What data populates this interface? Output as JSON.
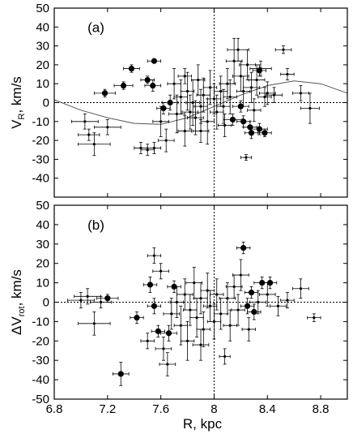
{
  "chart_data": [
    {
      "type": "scatter",
      "panel_label": "(a)",
      "ylabel_main": "V",
      "ylabel_sub": "R",
      "ylabel_unit": ", km/s",
      "xlim": [
        6.8,
        9.0
      ],
      "ylim": [
        -50,
        50
      ],
      "y_ticks": [
        50,
        40,
        30,
        20,
        10,
        0,
        -10,
        -20,
        -30,
        -40
      ],
      "reference_lines": {
        "x": 8.0,
        "y": 0
      },
      "model_curve": [
        [
          6.8,
          1.5
        ],
        [
          7.0,
          -4
        ],
        [
          7.2,
          -8
        ],
        [
          7.4,
          -11
        ],
        [
          7.6,
          -11.5
        ],
        [
          7.8,
          -8
        ],
        [
          8.0,
          -2
        ],
        [
          8.2,
          4
        ],
        [
          8.4,
          9
        ],
        [
          8.6,
          11.5
        ],
        [
          8.8,
          10
        ],
        [
          9.0,
          5
        ]
      ],
      "large_points": [
        {
          "x": 7.18,
          "y": 5,
          "ex": 0.08,
          "ey": 2
        },
        {
          "x": 7.32,
          "y": 9,
          "ex": 0.07,
          "ey": 2
        },
        {
          "x": 7.38,
          "y": 18,
          "ex": 0.06,
          "ey": 2
        },
        {
          "x": 7.5,
          "y": 12,
          "ex": 0.05,
          "ey": 2
        },
        {
          "x": 7.55,
          "y": 22,
          "ex": 0.05,
          "ey": 1
        },
        {
          "x": 7.54,
          "y": 9,
          "ex": 0.06,
          "ey": 3
        },
        {
          "x": 7.62,
          "y": -3,
          "ex": 0.05,
          "ey": 3
        },
        {
          "x": 7.67,
          "y": 0,
          "ex": 0.06,
          "ey": 4
        },
        {
          "x": 8.14,
          "y": -9,
          "ex": 0.07,
          "ey": 3
        },
        {
          "x": 8.2,
          "y": -2,
          "ex": 0.06,
          "ey": 3
        },
        {
          "x": 8.22,
          "y": -10,
          "ex": 0.05,
          "ey": 3
        },
        {
          "x": 8.27,
          "y": -13,
          "ex": 0.05,
          "ey": 3
        },
        {
          "x": 8.28,
          "y": -16,
          "ex": 0.05,
          "ey": 3
        },
        {
          "x": 8.34,
          "y": 17,
          "ex": 0.05,
          "ey": 3
        },
        {
          "x": 8.34,
          "y": -14,
          "ex": 0.06,
          "ey": 3
        },
        {
          "x": 8.38,
          "y": -16,
          "ex": 0.05,
          "ey": 2
        }
      ],
      "small_points": [
        {
          "x": 7.03,
          "y": -10,
          "ex": 0.1,
          "ey": 4
        },
        {
          "x": 7.06,
          "y": -17,
          "ex": 0.08,
          "ey": 3
        },
        {
          "x": 7.1,
          "y": -22,
          "ex": 0.12,
          "ey": 6
        },
        {
          "x": 7.2,
          "y": -13,
          "ex": 0.1,
          "ey": 4
        },
        {
          "x": 7.45,
          "y": -24,
          "ex": 0.05,
          "ey": 3
        },
        {
          "x": 7.5,
          "y": -25,
          "ex": 0.05,
          "ey": 3
        },
        {
          "x": 7.55,
          "y": -24,
          "ex": 0.05,
          "ey": 3
        },
        {
          "x": 7.6,
          "y": -10,
          "ex": 0.06,
          "ey": 8
        },
        {
          "x": 7.64,
          "y": -20,
          "ex": 0.06,
          "ey": 6
        },
        {
          "x": 7.7,
          "y": 10,
          "ex": 0.05,
          "ey": 8
        },
        {
          "x": 7.72,
          "y": -6,
          "ex": 0.06,
          "ey": 10
        },
        {
          "x": 7.75,
          "y": 3,
          "ex": 0.05,
          "ey": 9
        },
        {
          "x": 7.78,
          "y": -15,
          "ex": 0.05,
          "ey": 8
        },
        {
          "x": 7.8,
          "y": 6,
          "ex": 0.05,
          "ey": 10
        },
        {
          "x": 7.82,
          "y": -5,
          "ex": 0.06,
          "ey": 9
        },
        {
          "x": 7.84,
          "y": 0,
          "ex": 0.05,
          "ey": 12
        },
        {
          "x": 7.86,
          "y": -8,
          "ex": 0.06,
          "ey": 9
        },
        {
          "x": 7.88,
          "y": 12,
          "ex": 0.05,
          "ey": 8
        },
        {
          "x": 7.9,
          "y": -2,
          "ex": 0.05,
          "ey": 9
        },
        {
          "x": 7.92,
          "y": 4,
          "ex": 0.05,
          "ey": 9
        },
        {
          "x": 7.95,
          "y": -10,
          "ex": 0.05,
          "ey": 12
        },
        {
          "x": 7.97,
          "y": 8,
          "ex": 0.05,
          "ey": 9
        },
        {
          "x": 8.0,
          "y": 2,
          "ex": 0.05,
          "ey": 8
        },
        {
          "x": 8.02,
          "y": -5,
          "ex": 0.05,
          "ey": 9
        },
        {
          "x": 8.05,
          "y": 6,
          "ex": 0.05,
          "ey": 8
        },
        {
          "x": 8.07,
          "y": -2,
          "ex": 0.05,
          "ey": 9
        },
        {
          "x": 8.1,
          "y": 10,
          "ex": 0.06,
          "ey": 8
        },
        {
          "x": 8.12,
          "y": 3,
          "ex": 0.05,
          "ey": 9
        },
        {
          "x": 8.15,
          "y": 22,
          "ex": 0.06,
          "ey": 12
        },
        {
          "x": 8.18,
          "y": 28,
          "ex": 0.08,
          "ey": 6
        },
        {
          "x": 8.2,
          "y": 14,
          "ex": 0.06,
          "ey": 8
        },
        {
          "x": 8.22,
          "y": 6,
          "ex": 0.05,
          "ey": 8
        },
        {
          "x": 8.25,
          "y": 20,
          "ex": 0.06,
          "ey": 8
        },
        {
          "x": 8.28,
          "y": 8,
          "ex": 0.06,
          "ey": 8
        },
        {
          "x": 8.3,
          "y": -4,
          "ex": 0.05,
          "ey": 6
        },
        {
          "x": 8.32,
          "y": 12,
          "ex": 0.06,
          "ey": 8
        },
        {
          "x": 8.35,
          "y": 18,
          "ex": 0.08,
          "ey": 4
        },
        {
          "x": 8.4,
          "y": 5,
          "ex": 0.06,
          "ey": 6
        },
        {
          "x": 8.45,
          "y": 4,
          "ex": 0.06,
          "ey": 4
        },
        {
          "x": 8.52,
          "y": 28,
          "ex": 0.06,
          "ey": 2
        },
        {
          "x": 8.55,
          "y": 15,
          "ex": 0.05,
          "ey": 3
        },
        {
          "x": 8.65,
          "y": 5,
          "ex": 0.06,
          "ey": 4
        },
        {
          "x": 8.72,
          "y": -3,
          "ex": 0.07,
          "ey": 8
        },
        {
          "x": 8.24,
          "y": -29,
          "ex": 0.04,
          "ey": 1.5
        },
        {
          "x": 7.9,
          "y": -15,
          "ex": 0.06,
          "ey": 6
        },
        {
          "x": 7.78,
          "y": 14,
          "ex": 0.05,
          "ey": 4
        },
        {
          "x": 8.38,
          "y": 3,
          "ex": 0.05,
          "ey": 5
        },
        {
          "x": 8.08,
          "y": -12,
          "ex": 0.05,
          "ey": 6
        }
      ]
    },
    {
      "type": "scatter",
      "panel_label": "(b)",
      "ylabel_main": "ΔV",
      "ylabel_sub": "rot",
      "ylabel_unit": ", km/s",
      "xlabel": "R, kpc",
      "xlim": [
        6.8,
        9.0
      ],
      "ylim": [
        -50,
        50
      ],
      "x_ticks": [
        "6.8",
        "7.2",
        "7.6",
        "8",
        "8.4",
        "8.8"
      ],
      "y_ticks": [
        50,
        40,
        30,
        20,
        10,
        0,
        -10,
        -20,
        -30,
        -40,
        -50
      ],
      "reference_lines": {
        "x": 8.0,
        "y": 0
      },
      "large_points": [
        {
          "x": 7.2,
          "y": 2,
          "ex": 0.08,
          "ey": 2
        },
        {
          "x": 7.3,
          "y": -37,
          "ex": 0.06,
          "ey": 6
        },
        {
          "x": 7.42,
          "y": -8,
          "ex": 0.05,
          "ey": 3
        },
        {
          "x": 7.52,
          "y": 9,
          "ex": 0.05,
          "ey": 4
        },
        {
          "x": 7.55,
          "y": -2,
          "ex": 0.05,
          "ey": 4
        },
        {
          "x": 7.58,
          "y": -15,
          "ex": 0.05,
          "ey": 3
        },
        {
          "x": 7.66,
          "y": -16,
          "ex": 0.06,
          "ey": 4
        },
        {
          "x": 7.7,
          "y": 8,
          "ex": 0.05,
          "ey": 3
        },
        {
          "x": 8.22,
          "y": 28,
          "ex": 0.05,
          "ey": 3
        },
        {
          "x": 8.25,
          "y": -2,
          "ex": 0.05,
          "ey": 4
        },
        {
          "x": 8.28,
          "y": 5,
          "ex": 0.05,
          "ey": 3
        },
        {
          "x": 8.3,
          "y": -5,
          "ex": 0.05,
          "ey": 4
        },
        {
          "x": 8.36,
          "y": 10,
          "ex": 0.06,
          "ey": 3
        },
        {
          "x": 8.42,
          "y": 10,
          "ex": 0.05,
          "ey": 3
        }
      ],
      "small_points": [
        {
          "x": 7.0,
          "y": 1,
          "ex": 0.1,
          "ey": 4
        },
        {
          "x": 7.05,
          "y": 3,
          "ex": 0.1,
          "ey": 4
        },
        {
          "x": 7.1,
          "y": -11,
          "ex": 0.12,
          "ey": 6
        },
        {
          "x": 7.15,
          "y": 0,
          "ex": 0.08,
          "ey": 3
        },
        {
          "x": 7.5,
          "y": -20,
          "ex": 0.05,
          "ey": 4
        },
        {
          "x": 7.55,
          "y": 24,
          "ex": 0.05,
          "ey": 4
        },
        {
          "x": 7.6,
          "y": 16,
          "ex": 0.06,
          "ey": 4
        },
        {
          "x": 7.65,
          "y": -32,
          "ex": 0.06,
          "ey": 6
        },
        {
          "x": 7.68,
          "y": -6,
          "ex": 0.06,
          "ey": 8
        },
        {
          "x": 7.72,
          "y": 0,
          "ex": 0.05,
          "ey": 8
        },
        {
          "x": 7.75,
          "y": -12,
          "ex": 0.05,
          "ey": 10
        },
        {
          "x": 7.78,
          "y": 4,
          "ex": 0.06,
          "ey": 8
        },
        {
          "x": 7.8,
          "y": -20,
          "ex": 0.05,
          "ey": 10
        },
        {
          "x": 7.82,
          "y": -4,
          "ex": 0.05,
          "ey": 8
        },
        {
          "x": 7.85,
          "y": 10,
          "ex": 0.06,
          "ey": 8
        },
        {
          "x": 7.87,
          "y": -8,
          "ex": 0.05,
          "ey": 10
        },
        {
          "x": 7.9,
          "y": 2,
          "ex": 0.05,
          "ey": 8
        },
        {
          "x": 7.92,
          "y": -14,
          "ex": 0.05,
          "ey": 9
        },
        {
          "x": 7.95,
          "y": 6,
          "ex": 0.05,
          "ey": 9
        },
        {
          "x": 7.97,
          "y": -2,
          "ex": 0.05,
          "ey": 8
        },
        {
          "x": 8.0,
          "y": -10,
          "ex": 0.05,
          "ey": 9
        },
        {
          "x": 8.02,
          "y": 4,
          "ex": 0.05,
          "ey": 8
        },
        {
          "x": 8.05,
          "y": -6,
          "ex": 0.05,
          "ey": 8
        },
        {
          "x": 8.08,
          "y": -28,
          "ex": 0.04,
          "ey": 4
        },
        {
          "x": 8.1,
          "y": 2,
          "ex": 0.06,
          "ey": 8
        },
        {
          "x": 8.12,
          "y": -12,
          "ex": 0.05,
          "ey": 8
        },
        {
          "x": 8.15,
          "y": 8,
          "ex": 0.06,
          "ey": 6
        },
        {
          "x": 8.18,
          "y": -4,
          "ex": 0.05,
          "ey": 8
        },
        {
          "x": 8.2,
          "y": 14,
          "ex": 0.06,
          "ey": 8
        },
        {
          "x": 8.33,
          "y": 0,
          "ex": 0.06,
          "ey": 6
        },
        {
          "x": 8.4,
          "y": 4,
          "ex": 0.06,
          "ey": 6
        },
        {
          "x": 8.48,
          "y": -2,
          "ex": 0.06,
          "ey": 5
        },
        {
          "x": 8.55,
          "y": 1,
          "ex": 0.05,
          "ey": 4
        },
        {
          "x": 8.65,
          "y": 7,
          "ex": 0.06,
          "ey": 5
        },
        {
          "x": 8.75,
          "y": -8,
          "ex": 0.05,
          "ey": 2
        },
        {
          "x": 7.9,
          "y": -22,
          "ex": 0.06,
          "ey": 8
        },
        {
          "x": 8.26,
          "y": -14,
          "ex": 0.05,
          "ey": 6
        },
        {
          "x": 7.62,
          "y": -24,
          "ex": 0.06,
          "ey": 6
        }
      ]
    }
  ]
}
